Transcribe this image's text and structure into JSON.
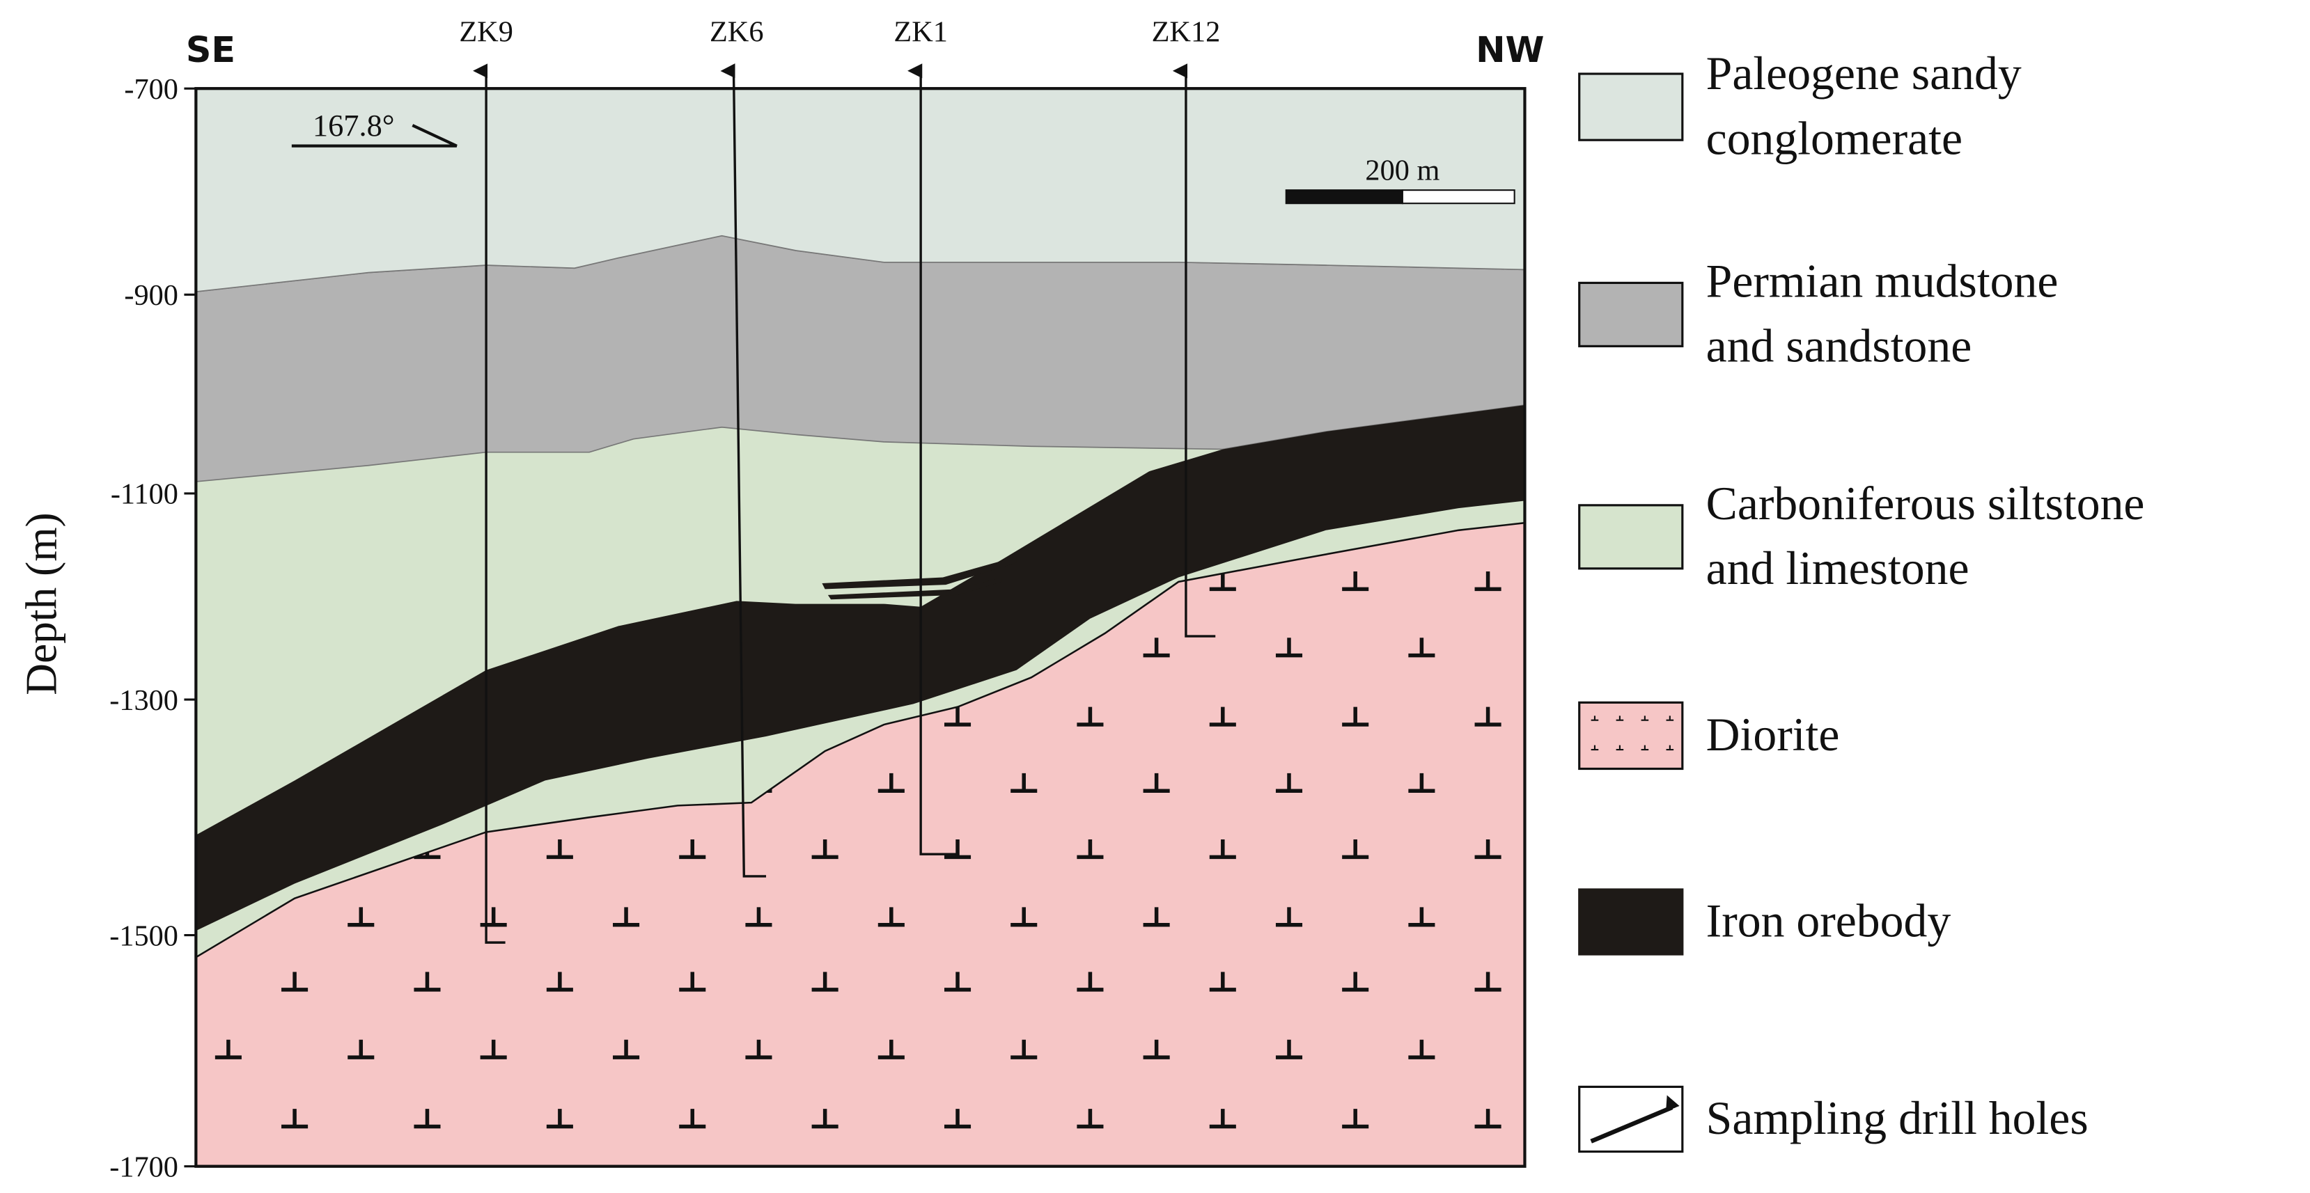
{
  "header": {
    "left": "SE",
    "right": "NW",
    "azimuth": "167.8°",
    "scale": "200 m"
  },
  "axis": {
    "label": "Depth (m)",
    "ticks": [
      "-700",
      "-900",
      "-1100",
      "-1300",
      "-1500",
      "-1700"
    ]
  },
  "drill_holes": [
    "ZK9",
    "ZK6",
    "ZK1",
    "ZK12"
  ],
  "legend": [
    {
      "lines": [
        "Paleogene  sandy",
        "conglomerate"
      ]
    },
    {
      "lines": [
        "Permian  mudstone",
        "and sandstone"
      ]
    },
    {
      "lines": [
        "Carboniferous  siltstone",
        "and limestone"
      ]
    },
    {
      "lines": [
        "Diorite"
      ]
    },
    {
      "lines": [
        "Iron orebody"
      ]
    },
    {
      "lines": [
        "Sampling drill holes"
      ]
    }
  ]
}
